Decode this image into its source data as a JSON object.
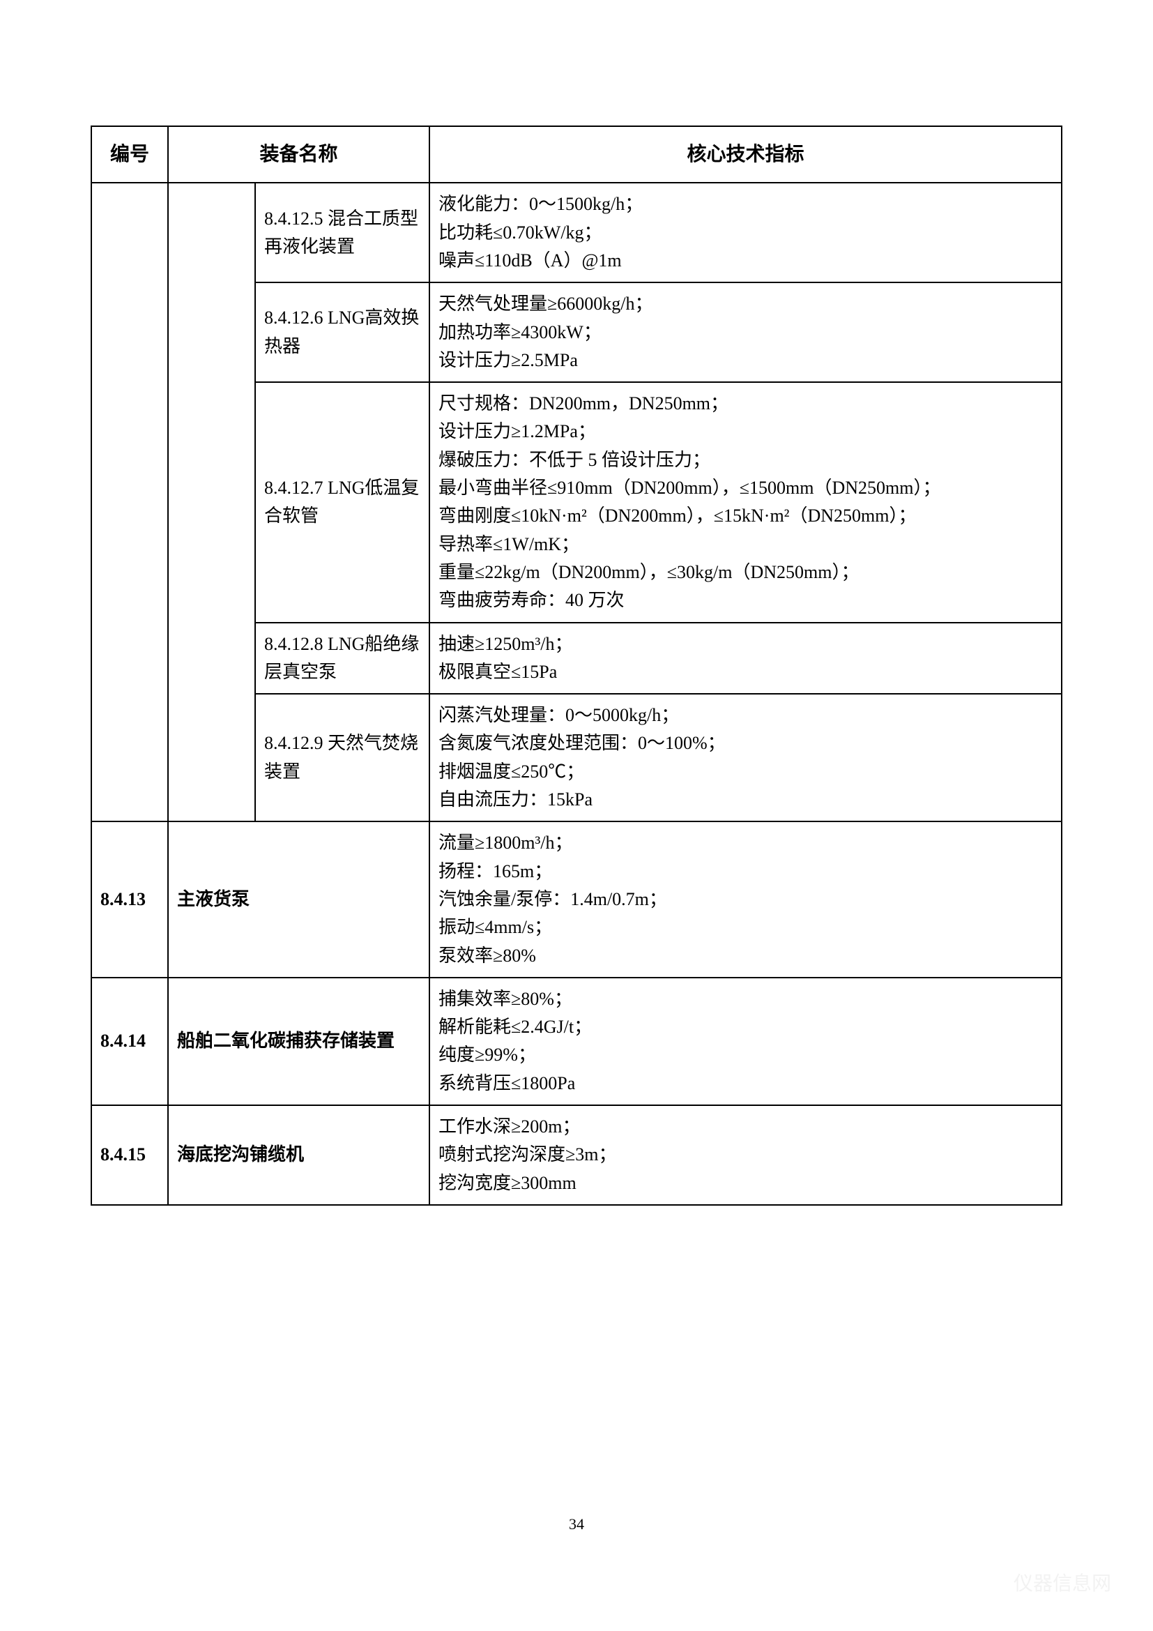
{
  "headers": {
    "col1": "编号",
    "col2": "装备名称",
    "col3": "核心技术指标"
  },
  "rows": [
    {
      "sub_name": "8.4.12.5 混合工质型再液化装置",
      "spec": "液化能力：0～1500kg/h；\n比功耗≤0.70kW/kg；\n噪声≤110dB（A）@1m"
    },
    {
      "sub_name": "8.4.12.6 LNG高效换热器",
      "spec": "天然气处理量≥66000kg/h；\n加热功率≥4300kW；\n设计压力≥2.5MPa"
    },
    {
      "sub_name": "8.4.12.7 LNG低温复合软管",
      "spec": "尺寸规格：DN200mm，DN250mm；\n设计压力≥1.2MPa；\n爆破压力：不低于 5 倍设计压力；\n最小弯曲半径≤910mm（DN200mm），≤1500mm（DN250mm）；\n弯曲刚度≤10kN·m²（DN200mm），≤15kN·m²（DN250mm）；\n导热率≤1W/mK；\n重量≤22kg/m（DN200mm），≤30kg/m（DN250mm）；\n弯曲疲劳寿命：40 万次"
    },
    {
      "sub_name": "8.4.12.8 LNG船绝缘层真空泵",
      "spec": "抽速≥1250m³/h；\n极限真空≤15Pa"
    },
    {
      "sub_name": "8.4.12.9 天然气焚烧装置",
      "spec": "闪蒸汽处理量：0～5000kg/h；\n含氮废气浓度处理范围：0～100%；\n排烟温度≤250℃；\n自由流压力：15kPa"
    }
  ],
  "full_rows": [
    {
      "id": "8.4.13",
      "name": "主液货泵",
      "spec": "流量≥1800m³/h；\n扬程：165m；\n汽蚀余量/泵停：1.4m/0.7m；\n振动≤4mm/s；\n泵效率≥80%"
    },
    {
      "id": "8.4.14",
      "name": "船舶二氧化碳捕获存储装置",
      "spec": "捕集效率≥80%；\n解析能耗≤2.4GJ/t；\n纯度≥99%；\n系统背压≤1800Pa"
    },
    {
      "id": "8.4.15",
      "name": "海底挖沟铺缆机",
      "spec": "工作水深≥200m；\n喷射式挖沟深度≥3m；\n挖沟宽度≥300mm"
    }
  ],
  "page_number": "34",
  "watermark": "仪器信息网"
}
